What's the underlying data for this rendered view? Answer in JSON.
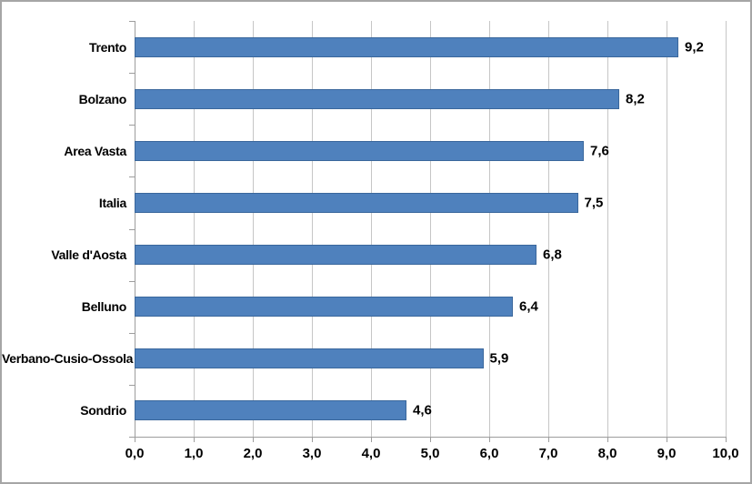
{
  "chart_data": {
    "type": "bar",
    "orientation": "horizontal",
    "title": "",
    "xlabel": "",
    "ylabel": "",
    "categories": [
      "Trento",
      "Bolzano",
      "Area Vasta",
      "Italia",
      "Valle d'Aosta",
      "Belluno",
      "Verbano-Cusio-Ossola",
      "Sondrio"
    ],
    "values": [
      9.2,
      8.2,
      7.6,
      7.5,
      6.8,
      6.4,
      5.9,
      4.6
    ],
    "value_labels": [
      "9,2",
      "8,2",
      "7,6",
      "7,5",
      "6,8",
      "6,4",
      "5,9",
      "4,6"
    ],
    "x_tick_labels": [
      "0,0",
      "1,0",
      "2,0",
      "3,0",
      "4,0",
      "5,0",
      "6,0",
      "7,0",
      "8,0",
      "9,0",
      "10,0"
    ],
    "xlim": [
      0,
      10
    ],
    "x_tick_step": 1.0,
    "decimal_separator": ",",
    "grid": "vertical-gridlines-on",
    "legend": "none",
    "data_labels": "outside-end",
    "colors": {
      "bar_fill": "#4f81bd",
      "bar_border": "#3a679c",
      "gridline": "#c6c6c6",
      "axis_line": "#9d9d9d",
      "tick": "#9d9d9d",
      "label_text": "#000000",
      "background": "#ffffff",
      "frame_border": "#a6a6a6"
    }
  }
}
